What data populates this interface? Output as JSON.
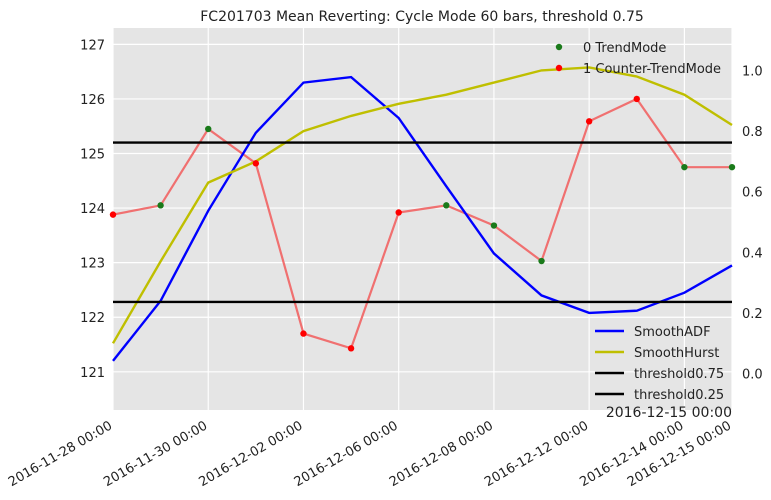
{
  "chart_data": {
    "type": "line",
    "title": "FC201703 Mean Reverting: Cycle Mode 60 bars, threshold 0.75",
    "x_tick_labels": [
      "2016-11-28 00:00",
      "2016-11-30 00:00",
      "2016-12-02 00:00",
      "2016-12-06 00:00",
      "2016-12-08 00:00",
      "2016-12-12 00:00",
      "2016-12-14 00:00",
      "2016-12-15 00:00"
    ],
    "x_offset_label": "2016-12-15 00:00",
    "left_axis": {
      "ylim": [
        120.3,
        127.3
      ],
      "ticks": [
        121,
        122,
        123,
        124,
        125,
        126,
        127
      ]
    },
    "right_axis": {
      "ylim": [
        -0.12,
        1.14
      ],
      "ticks": [
        0.0,
        0.2,
        0.4,
        0.6,
        0.8,
        1.0
      ]
    },
    "x_points": 14,
    "price": {
      "axis": "left",
      "color": "#f07070",
      "values": [
        123.88,
        124.05,
        125.45,
        124.82,
        121.7,
        121.43,
        123.92,
        124.05,
        123.68,
        123.03,
        125.59,
        126.0,
        124.75,
        124.75
      ],
      "mode": [
        1,
        0,
        0,
        1,
        1,
        1,
        1,
        0,
        0,
        0,
        1,
        1,
        0,
        0
      ]
    },
    "threshold_lines": {
      "axis": "left",
      "values": [
        125.2,
        122.28
      ]
    },
    "series": [
      {
        "name": "SmoothADF",
        "axis": "left",
        "color": "#0000ff",
        "values": [
          121.2,
          122.3,
          123.95,
          125.38,
          126.3,
          126.4,
          125.65,
          124.4,
          123.17,
          122.4,
          122.08,
          122.12,
          122.45,
          122.95
        ]
      },
      {
        "name": "SmoothHurst",
        "axis": "right",
        "color": "#bfbf00",
        "values": [
          0.1,
          0.37,
          0.63,
          0.7,
          0.8,
          0.85,
          0.89,
          0.92,
          0.96,
          1.0,
          1.01,
          0.98,
          0.92,
          0.82
        ]
      }
    ],
    "legend_scatter": [
      {
        "label": "0 TrendMode",
        "color": "#1a7a1a"
      },
      {
        "label": "1 Counter-TrendMode",
        "color": "#ff0000"
      }
    ],
    "legend_lines": [
      {
        "label": "SmoothADF",
        "color": "#0000ff"
      },
      {
        "label": "SmoothHurst",
        "color": "#bfbf00"
      },
      {
        "label": "threshold0.75",
        "color": "#000000"
      },
      {
        "label": "threshold0.25",
        "color": "#000000"
      }
    ],
    "legend_placement": {
      "scatter": "top-right",
      "lines": "bottom-right"
    },
    "grid": true,
    "colors": {
      "background": "#e5e5e5",
      "grid": "#ffffff",
      "threshold": "#000000"
    }
  }
}
